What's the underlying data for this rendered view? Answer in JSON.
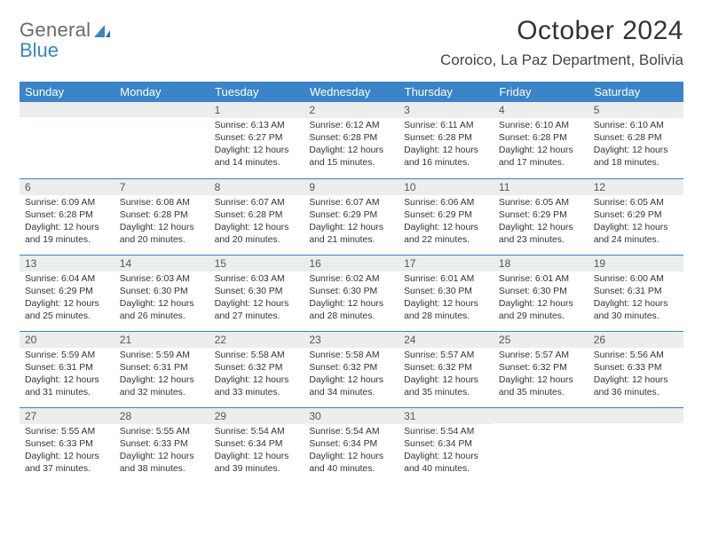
{
  "logo": {
    "line1": "General",
    "line2": "Blue"
  },
  "title": "October 2024",
  "location": "Coroico, La Paz Department, Bolivia",
  "colors": {
    "header_bg": "#3a84c7",
    "header_text": "#ffffff",
    "daynum_bg": "#eceded",
    "border": "#3a84c7",
    "logo_gray": "#6a6a6a",
    "logo_blue": "#3a84c7"
  },
  "dayHeaders": [
    "Sunday",
    "Monday",
    "Tuesday",
    "Wednesday",
    "Thursday",
    "Friday",
    "Saturday"
  ],
  "weeks": [
    [
      null,
      null,
      {
        "n": "1",
        "sunrise": "6:13 AM",
        "sunset": "6:27 PM",
        "daylight": "12 hours and 14 minutes."
      },
      {
        "n": "2",
        "sunrise": "6:12 AM",
        "sunset": "6:28 PM",
        "daylight": "12 hours and 15 minutes."
      },
      {
        "n": "3",
        "sunrise": "6:11 AM",
        "sunset": "6:28 PM",
        "daylight": "12 hours and 16 minutes."
      },
      {
        "n": "4",
        "sunrise": "6:10 AM",
        "sunset": "6:28 PM",
        "daylight": "12 hours and 17 minutes."
      },
      {
        "n": "5",
        "sunrise": "6:10 AM",
        "sunset": "6:28 PM",
        "daylight": "12 hours and 18 minutes."
      }
    ],
    [
      {
        "n": "6",
        "sunrise": "6:09 AM",
        "sunset": "6:28 PM",
        "daylight": "12 hours and 19 minutes."
      },
      {
        "n": "7",
        "sunrise": "6:08 AM",
        "sunset": "6:28 PM",
        "daylight": "12 hours and 20 minutes."
      },
      {
        "n": "8",
        "sunrise": "6:07 AM",
        "sunset": "6:28 PM",
        "daylight": "12 hours and 20 minutes."
      },
      {
        "n": "9",
        "sunrise": "6:07 AM",
        "sunset": "6:29 PM",
        "daylight": "12 hours and 21 minutes."
      },
      {
        "n": "10",
        "sunrise": "6:06 AM",
        "sunset": "6:29 PM",
        "daylight": "12 hours and 22 minutes."
      },
      {
        "n": "11",
        "sunrise": "6:05 AM",
        "sunset": "6:29 PM",
        "daylight": "12 hours and 23 minutes."
      },
      {
        "n": "12",
        "sunrise": "6:05 AM",
        "sunset": "6:29 PM",
        "daylight": "12 hours and 24 minutes."
      }
    ],
    [
      {
        "n": "13",
        "sunrise": "6:04 AM",
        "sunset": "6:29 PM",
        "daylight": "12 hours and 25 minutes."
      },
      {
        "n": "14",
        "sunrise": "6:03 AM",
        "sunset": "6:30 PM",
        "daylight": "12 hours and 26 minutes."
      },
      {
        "n": "15",
        "sunrise": "6:03 AM",
        "sunset": "6:30 PM",
        "daylight": "12 hours and 27 minutes."
      },
      {
        "n": "16",
        "sunrise": "6:02 AM",
        "sunset": "6:30 PM",
        "daylight": "12 hours and 28 minutes."
      },
      {
        "n": "17",
        "sunrise": "6:01 AM",
        "sunset": "6:30 PM",
        "daylight": "12 hours and 28 minutes."
      },
      {
        "n": "18",
        "sunrise": "6:01 AM",
        "sunset": "6:30 PM",
        "daylight": "12 hours and 29 minutes."
      },
      {
        "n": "19",
        "sunrise": "6:00 AM",
        "sunset": "6:31 PM",
        "daylight": "12 hours and 30 minutes."
      }
    ],
    [
      {
        "n": "20",
        "sunrise": "5:59 AM",
        "sunset": "6:31 PM",
        "daylight": "12 hours and 31 minutes."
      },
      {
        "n": "21",
        "sunrise": "5:59 AM",
        "sunset": "6:31 PM",
        "daylight": "12 hours and 32 minutes."
      },
      {
        "n": "22",
        "sunrise": "5:58 AM",
        "sunset": "6:32 PM",
        "daylight": "12 hours and 33 minutes."
      },
      {
        "n": "23",
        "sunrise": "5:58 AM",
        "sunset": "6:32 PM",
        "daylight": "12 hours and 34 minutes."
      },
      {
        "n": "24",
        "sunrise": "5:57 AM",
        "sunset": "6:32 PM",
        "daylight": "12 hours and 35 minutes."
      },
      {
        "n": "25",
        "sunrise": "5:57 AM",
        "sunset": "6:32 PM",
        "daylight": "12 hours and 35 minutes."
      },
      {
        "n": "26",
        "sunrise": "5:56 AM",
        "sunset": "6:33 PM",
        "daylight": "12 hours and 36 minutes."
      }
    ],
    [
      {
        "n": "27",
        "sunrise": "5:55 AM",
        "sunset": "6:33 PM",
        "daylight": "12 hours and 37 minutes."
      },
      {
        "n": "28",
        "sunrise": "5:55 AM",
        "sunset": "6:33 PM",
        "daylight": "12 hours and 38 minutes."
      },
      {
        "n": "29",
        "sunrise": "5:54 AM",
        "sunset": "6:34 PM",
        "daylight": "12 hours and 39 minutes."
      },
      {
        "n": "30",
        "sunrise": "5:54 AM",
        "sunset": "6:34 PM",
        "daylight": "12 hours and 40 minutes."
      },
      {
        "n": "31",
        "sunrise": "5:54 AM",
        "sunset": "6:34 PM",
        "daylight": "12 hours and 40 minutes."
      },
      null,
      null
    ]
  ],
  "labels": {
    "sunrise": "Sunrise:",
    "sunset": "Sunset:",
    "daylight": "Daylight:"
  }
}
